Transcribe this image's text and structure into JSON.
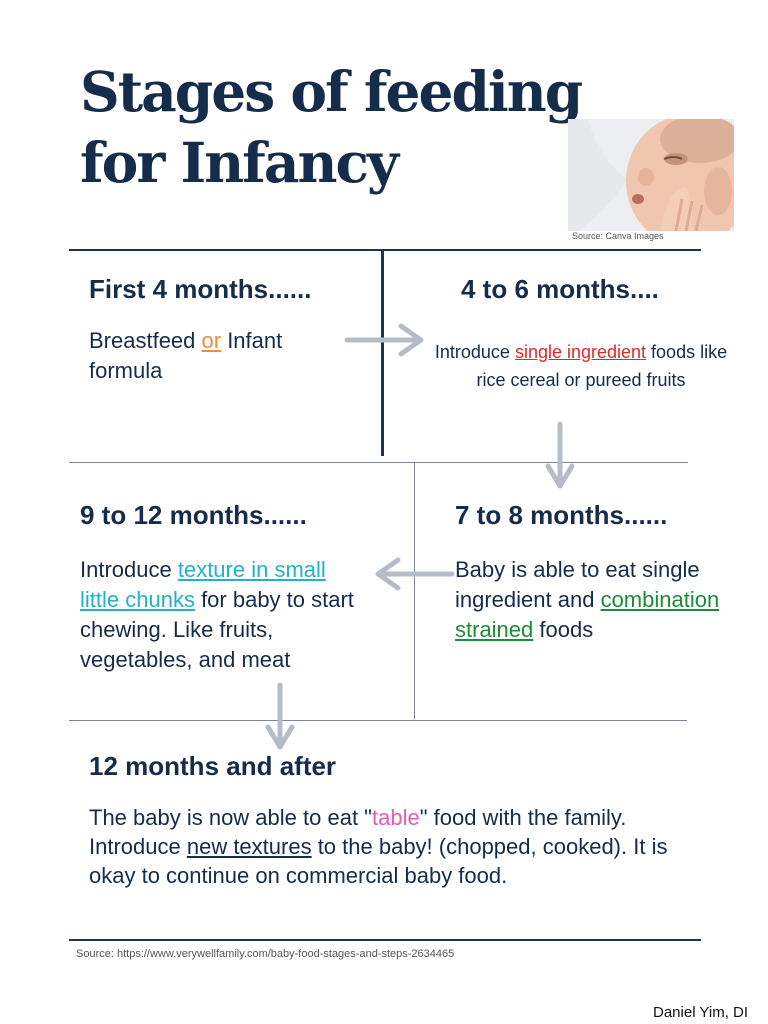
{
  "title": "Stages of feeding for Infancy",
  "photo": {
    "credit": "Source: Canva Images"
  },
  "colors": {
    "navy": "#152c4a",
    "arrow": "#b6bcc6",
    "orange": "#f08a3c",
    "red": "#e0262a",
    "teal": "#20b3c6",
    "green": "#1e8a3a",
    "pink": "#e95bb3"
  },
  "stages": [
    {
      "heading": "First 4 months......",
      "text": {
        "before": "Breastfeed ",
        "highlight": "or",
        "after": " Infant formula"
      }
    },
    {
      "heading": "4 to 6 months....",
      "text": {
        "before": "Introduce ",
        "highlight": "single ingredient",
        "after": " foods like rice cereal or pureed fruits"
      }
    },
    {
      "heading": "7 to 8 months......",
      "text": {
        "before": "Baby is able to eat single ingredient and ",
        "highlight": "combination strained",
        "after": " foods"
      }
    },
    {
      "heading": "9 to 12 months......",
      "text": {
        "before": "Introduce ",
        "highlight": "texture in small little chunks",
        "after": " for baby to start chewing. Like fruits, vegetables, and meat"
      }
    },
    {
      "heading": "12 months and after",
      "text": {
        "part1": "The baby is now able to eat \"",
        "highlight1": "table",
        "part2": "\" food with the family. Introduce ",
        "highlight2": "new textures",
        "part3": " to the baby! (chopped, cooked). It is okay to continue on commercial baby food."
      }
    }
  ],
  "icons": [
    "arrow-right-icon",
    "arrow-down-icon",
    "arrow-left-icon",
    "arrow-down-icon"
  ],
  "source": "Source: https://www.verywellfamily.com/baby-food-stages-and-steps-2634465",
  "author": "Daniel Yim, DI"
}
